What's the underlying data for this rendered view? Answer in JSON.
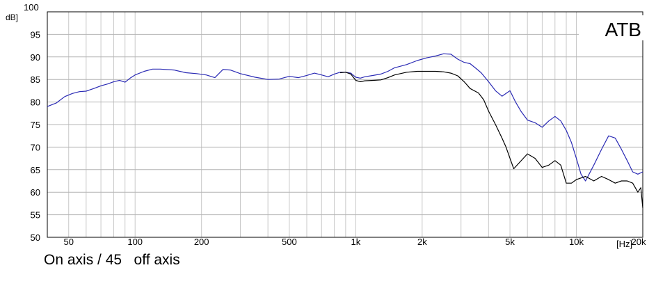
{
  "chart_data": {
    "type": "line",
    "title": "ATB",
    "ylabel": "dB]",
    "xlabel": "[Hz]",
    "x_scale": "log",
    "xlim": [
      40,
      20000
    ],
    "ylim": [
      50,
      100
    ],
    "grid": true,
    "x_ticks": [
      {
        "value": 50,
        "label": "50"
      },
      {
        "value": 100,
        "label": "100"
      },
      {
        "value": 200,
        "label": "200"
      },
      {
        "value": 500,
        "label": "500"
      },
      {
        "value": 1000,
        "label": "1k"
      },
      {
        "value": 2000,
        "label": "2k"
      },
      {
        "value": 5000,
        "label": "5k"
      },
      {
        "value": 10000,
        "label": "10k"
      },
      {
        "value": 20000,
        "label": "20k"
      }
    ],
    "y_ticks": [
      {
        "value": 50,
        "label": "50"
      },
      {
        "value": 55,
        "label": "55"
      },
      {
        "value": 60,
        "label": "60"
      },
      {
        "value": 65,
        "label": "65"
      },
      {
        "value": 70,
        "label": "70"
      },
      {
        "value": 75,
        "label": "75"
      },
      {
        "value": 80,
        "label": "80"
      },
      {
        "value": 85,
        "label": "85"
      },
      {
        "value": 90,
        "label": "90"
      },
      {
        "value": 95,
        "label": "95"
      },
      {
        "value": 100,
        "label": "100"
      }
    ],
    "series": [
      {
        "color": "#2a2ab4",
        "points": [
          [
            40,
            79
          ],
          [
            44,
            79.8
          ],
          [
            48,
            81.2
          ],
          [
            52,
            81.9
          ],
          [
            56,
            82.3
          ],
          [
            60,
            82.4
          ],
          [
            65,
            83
          ],
          [
            70,
            83.6
          ],
          [
            75,
            84
          ],
          [
            80,
            84.5
          ],
          [
            85,
            84.8
          ],
          [
            90,
            84.4
          ],
          [
            95,
            85.3
          ],
          [
            100,
            86
          ],
          [
            110,
            86.8
          ],
          [
            120,
            87.3
          ],
          [
            130,
            87.3
          ],
          [
            150,
            87.1
          ],
          [
            170,
            86.5
          ],
          [
            190,
            86.3
          ],
          [
            210,
            86
          ],
          [
            230,
            85.4
          ],
          [
            250,
            87.2
          ],
          [
            270,
            87.1
          ],
          [
            300,
            86.3
          ],
          [
            350,
            85.5
          ],
          [
            400,
            85
          ],
          [
            450,
            85.1
          ],
          [
            500,
            85.7
          ],
          [
            550,
            85.4
          ],
          [
            600,
            85.9
          ],
          [
            650,
            86.4
          ],
          [
            700,
            86
          ],
          [
            750,
            85.6
          ],
          [
            800,
            86.2
          ],
          [
            850,
            86.6
          ],
          [
            900,
            86.6
          ],
          [
            950,
            86.4
          ],
          [
            1000,
            85.5
          ],
          [
            1050,
            85.3
          ],
          [
            1100,
            85.6
          ],
          [
            1200,
            85.9
          ],
          [
            1300,
            86.2
          ],
          [
            1400,
            86.8
          ],
          [
            1500,
            87.6
          ],
          [
            1700,
            88.3
          ],
          [
            1900,
            89.2
          ],
          [
            2100,
            89.8
          ],
          [
            2300,
            90.2
          ],
          [
            2500,
            90.7
          ],
          [
            2700,
            90.6
          ],
          [
            2900,
            89.5
          ],
          [
            3100,
            88.8
          ],
          [
            3300,
            88.5
          ],
          [
            3500,
            87.5
          ],
          [
            3700,
            86.5
          ],
          [
            4000,
            84.5
          ],
          [
            4300,
            82.5
          ],
          [
            4600,
            81.3
          ],
          [
            5000,
            82.5
          ],
          [
            5300,
            80
          ],
          [
            5600,
            78
          ],
          [
            6000,
            76
          ],
          [
            6500,
            75.4
          ],
          [
            7000,
            74.4
          ],
          [
            7500,
            75.8
          ],
          [
            8000,
            76.8
          ],
          [
            8500,
            75.8
          ],
          [
            9000,
            73.7
          ],
          [
            9500,
            71
          ],
          [
            10000,
            67.5
          ],
          [
            10500,
            64
          ],
          [
            11000,
            62.5
          ],
          [
            12000,
            66
          ],
          [
            13000,
            69.5
          ],
          [
            14000,
            72.5
          ],
          [
            15000,
            72
          ],
          [
            16000,
            69.5
          ],
          [
            17000,
            67
          ],
          [
            18000,
            64.5
          ],
          [
            19000,
            64
          ],
          [
            20000,
            64.5
          ]
        ]
      },
      {
        "color": "#000000",
        "points": [
          [
            850,
            86.5
          ],
          [
            900,
            86.6
          ],
          [
            950,
            86.2
          ],
          [
            1000,
            84.8
          ],
          [
            1050,
            84.5
          ],
          [
            1100,
            84.7
          ],
          [
            1200,
            84.8
          ],
          [
            1300,
            84.9
          ],
          [
            1400,
            85.4
          ],
          [
            1500,
            86
          ],
          [
            1700,
            86.6
          ],
          [
            1900,
            86.8
          ],
          [
            2100,
            86.8
          ],
          [
            2300,
            86.8
          ],
          [
            2500,
            86.7
          ],
          [
            2700,
            86.4
          ],
          [
            2900,
            85.8
          ],
          [
            3100,
            84.5
          ],
          [
            3300,
            83
          ],
          [
            3600,
            82
          ],
          [
            3800,
            80.5
          ],
          [
            4000,
            78
          ],
          [
            4300,
            75
          ],
          [
            4600,
            72
          ],
          [
            4800,
            70
          ],
          [
            5000,
            67.5
          ],
          [
            5200,
            65.2
          ],
          [
            5500,
            66.5
          ],
          [
            6000,
            68.5
          ],
          [
            6500,
            67.5
          ],
          [
            7000,
            65.5
          ],
          [
            7500,
            66
          ],
          [
            8000,
            67
          ],
          [
            8500,
            66
          ],
          [
            9000,
            62
          ],
          [
            9500,
            62
          ],
          [
            10000,
            62.8
          ],
          [
            11000,
            63.5
          ],
          [
            12000,
            62.5
          ],
          [
            13000,
            63.5
          ],
          [
            14000,
            62.8
          ],
          [
            15000,
            62
          ],
          [
            16000,
            62.5
          ],
          [
            17000,
            62.5
          ],
          [
            18000,
            62
          ],
          [
            19000,
            60
          ],
          [
            19600,
            61
          ],
          [
            20000,
            56.5
          ]
        ]
      }
    ],
    "caption": "On axis / 45   off axis"
  }
}
